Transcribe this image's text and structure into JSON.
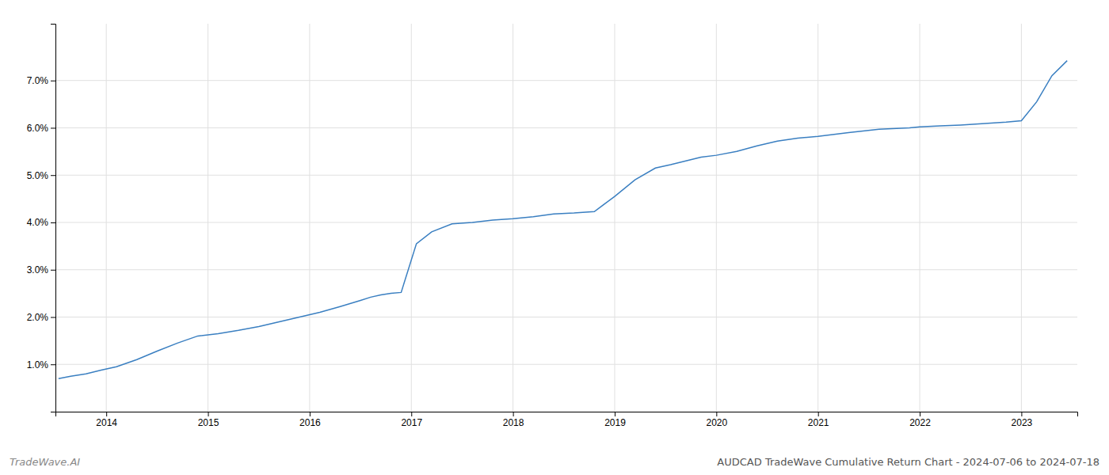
{
  "chart_data": {
    "type": "line",
    "title": "AUDCAD TradeWave Cumulative Return Chart - 2024-07-06 to 2024-07-18",
    "annotations": [
      "TradeWave.AI"
    ],
    "color": "#3a7fc1",
    "grid": true,
    "x": [
      2013.53,
      2013.65,
      2013.8,
      2013.95,
      2014.1,
      2014.3,
      2014.5,
      2014.7,
      2014.9,
      2015.1,
      2015.3,
      2015.5,
      2015.7,
      2015.9,
      2016.1,
      2016.3,
      2016.5,
      2016.6,
      2016.7,
      2016.8,
      2016.9,
      2017.05,
      2017.2,
      2017.4,
      2017.6,
      2017.8,
      2018.0,
      2018.2,
      2018.4,
      2018.6,
      2018.8,
      2019.0,
      2019.2,
      2019.4,
      2019.55,
      2019.7,
      2019.85,
      2020.0,
      2020.2,
      2020.4,
      2020.6,
      2020.8,
      2021.0,
      2021.3,
      2021.6,
      2021.9,
      2022.0,
      2022.2,
      2022.4,
      2022.55,
      2022.7,
      2022.85,
      2023.0,
      2023.15,
      2023.3,
      2023.45
    ],
    "values": [
      0.7,
      0.75,
      0.8,
      0.88,
      0.95,
      1.1,
      1.28,
      1.45,
      1.6,
      1.65,
      1.72,
      1.8,
      1.9,
      2.0,
      2.1,
      2.22,
      2.35,
      2.42,
      2.47,
      2.5,
      2.52,
      3.55,
      3.8,
      3.97,
      4.0,
      4.05,
      4.08,
      4.12,
      4.18,
      4.2,
      4.23,
      4.55,
      4.9,
      5.15,
      5.22,
      5.3,
      5.38,
      5.42,
      5.5,
      5.62,
      5.72,
      5.78,
      5.82,
      5.9,
      5.97,
      6.0,
      6.02,
      6.04,
      6.06,
      6.08,
      6.1,
      6.12,
      6.15,
      6.55,
      7.1,
      7.42
    ],
    "xlim": [
      2013.5,
      2023.55
    ],
    "ylim": [
      0.0,
      8.2
    ],
    "xticks": [
      2014,
      2015,
      2016,
      2017,
      2018,
      2019,
      2020,
      2021,
      2022,
      2023
    ],
    "yticks": [
      {
        "value": 1.0,
        "label": "1.0%"
      },
      {
        "value": 2.0,
        "label": "2.0%"
      },
      {
        "value": 3.0,
        "label": "3.0%"
      },
      {
        "value": 4.0,
        "label": "4.0%"
      },
      {
        "value": 5.0,
        "label": "5.0%"
      },
      {
        "value": 6.0,
        "label": "6.0%"
      },
      {
        "value": 7.0,
        "label": "7.0%"
      }
    ]
  }
}
